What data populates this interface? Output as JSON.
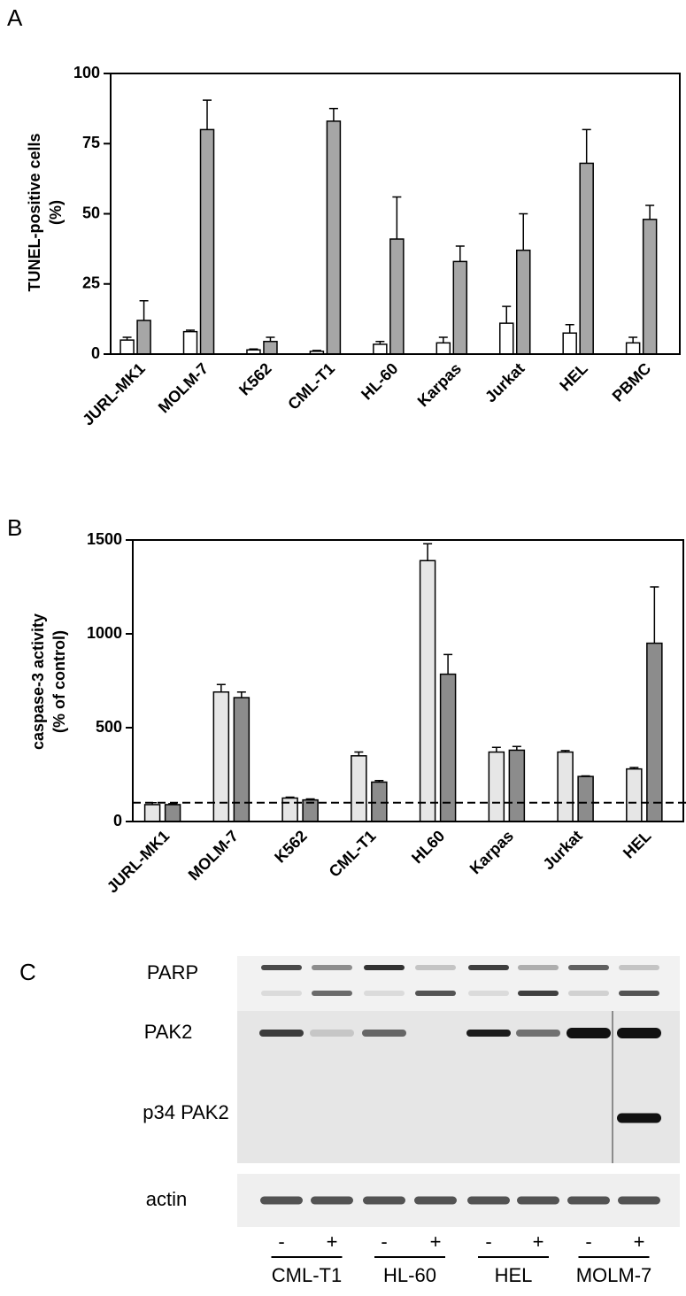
{
  "chart_data": [
    {
      "type": "bar",
      "panel_label": "A",
      "ylabel": [
        "TUNEL-positive cells",
        "(%)"
      ],
      "categories": [
        "JURL-MK1",
        "MOLM-7",
        "K562",
        "CML-T1",
        "HL-60",
        "Karpas",
        "Jurkat",
        "HEL",
        "PBMC"
      ],
      "series": [
        {
          "color": "#ffffff",
          "values": [
            5,
            8,
            1.5,
            1,
            3.5,
            4,
            11,
            7.5,
            4
          ],
          "errors": [
            1,
            0.5,
            0.3,
            0.3,
            1,
            2,
            6,
            3,
            2
          ]
        },
        {
          "color": "#a6a6a6",
          "values": [
            12,
            80,
            4.5,
            83,
            41,
            33,
            37,
            68,
            48
          ],
          "errors": [
            7,
            10.5,
            1.5,
            4.5,
            15,
            5.5,
            13,
            12,
            5
          ]
        }
      ],
      "ylim": [
        0,
        100
      ],
      "yticks": [
        0,
        25,
        50,
        75,
        100
      ]
    },
    {
      "type": "bar",
      "panel_label": "B",
      "ylabel": [
        "caspase-3 activity",
        "(% of control)"
      ],
      "categories": [
        "JURL-MK1",
        "MOLM-7",
        "K562",
        "CML-T1",
        "HL60",
        "Karpas",
        "Jurkat",
        "HEL"
      ],
      "series": [
        {
          "color": "#e6e6e6",
          "values": [
            90,
            690,
            125,
            350,
            1390,
            370,
            370,
            280
          ],
          "errors": [
            10,
            40,
            5,
            20,
            90,
            25,
            8,
            8
          ]
        },
        {
          "color": "#8c8c8c",
          "values": [
            90,
            660,
            115,
            210,
            785,
            380,
            240,
            950
          ],
          "errors": [
            5,
            30,
            5,
            8,
            105,
            20,
            3,
            300
          ]
        }
      ],
      "ylim": [
        0,
        1500
      ],
      "yticks": [
        0,
        500,
        1000,
        1500
      ],
      "reference_line": 100
    }
  ],
  "blot": {
    "panel_label": "C",
    "row_labels": [
      "PARP",
      "PAK2",
      "p34 PAK2",
      "actin"
    ],
    "lanes": [
      "-",
      "+",
      "-",
      "+",
      "-",
      "+",
      "-",
      "+"
    ],
    "groups": [
      "CML-T1",
      "HL-60",
      "HEL",
      "MOLM-7"
    ]
  }
}
